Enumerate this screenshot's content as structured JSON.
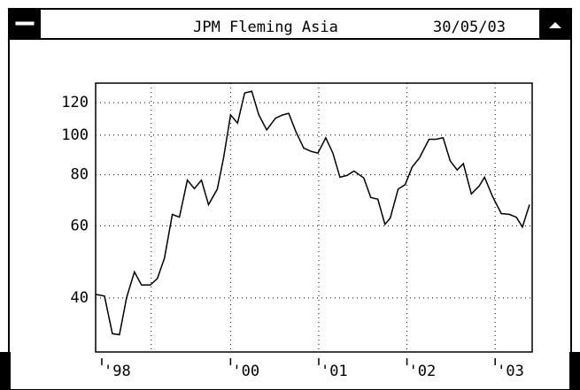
{
  "chart_data": {
    "type": "line",
    "title": "JPM Fleming Asia",
    "date": "30/05/03",
    "x": [
      1998.47,
      1998.57,
      1998.66,
      1998.74,
      1998.82,
      1998.91,
      1998.99,
      1999.09,
      1999.17,
      1999.25,
      1999.34,
      1999.42,
      1999.51,
      1999.59,
      1999.67,
      1999.75,
      1999.85,
      1999.92,
      2000.0,
      2000.08,
      2000.16,
      2000.24,
      2000.32,
      2000.41,
      2000.51,
      2000.59,
      2000.66,
      2000.74,
      2000.83,
      2000.91,
      2000.99,
      2001.08,
      2001.16,
      2001.24,
      2001.32,
      2001.4,
      2001.51,
      2001.59,
      2001.67,
      2001.75,
      2001.81,
      2001.9,
      2001.98,
      2002.06,
      2002.14,
      2002.25,
      2002.33,
      2002.41,
      2002.49,
      2002.57,
      2002.64,
      2002.73,
      2002.82,
      2002.88,
      2002.97,
      2003.07,
      2003.16,
      2003.24,
      2003.31,
      2003.39
    ],
    "values": [
      40.8,
      40.4,
      32.7,
      32.5,
      40,
      46.3,
      43,
      43,
      44.6,
      50,
      64,
      63,
      77.6,
      74,
      77.6,
      67.6,
      73.8,
      87.8,
      112,
      107,
      126.8,
      128,
      112,
      103,
      110,
      112,
      113,
      102,
      93,
      91.3,
      90.4,
      98.5,
      90.4,
      78.9,
      79.7,
      81.7,
      78.6,
      70.4,
      69.7,
      60.5,
      62.7,
      73.8,
      75.7,
      83.6,
      87.8,
      97.7,
      97.7,
      98.5,
      86.5,
      82.2,
      85.2,
      71.8,
      75.1,
      78.9,
      70.8,
      64.3,
      64,
      63,
      59.6,
      67.6
    ],
    "color": "#000000",
    "xlim": [
      1998.47,
      2003.42
    ],
    "xticks": [
      {
        "value": 1998.54,
        "label": "'98"
      },
      {
        "value": 1999.1,
        "label": null
      },
      {
        "value": 2000.0,
        "label": "'00"
      },
      {
        "value": 2001.0,
        "label": "'01"
      },
      {
        "value": 2002.0,
        "label": "'02"
      },
      {
        "value": 2003.0,
        "label": "'03"
      }
    ],
    "ylim": [
      29.5,
      134
    ],
    "yticks": [
      40,
      60,
      80,
      100,
      120
    ],
    "log_scale": true,
    "grid": true
  }
}
